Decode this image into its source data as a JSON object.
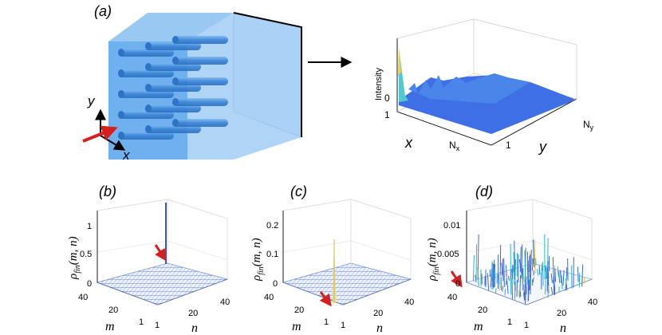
{
  "panels": {
    "a": {
      "label": "(a)",
      "axis_labels": {
        "y": "y",
        "x": "x"
      },
      "surface": {
        "zlabel": "Intensity",
        "ztick": "0",
        "x_label": "x",
        "x_ticks": [
          "1",
          "N"
        ],
        "x_tick_sub": "x",
        "y_label": "y",
        "y_ticks": [
          "1",
          "N"
        ],
        "y_tick_sub": "y"
      }
    },
    "b": {
      "label": "(b)",
      "zlabel_main": "ρ",
      "zlabel_sub": "fin",
      "zlabel_args": "(m, n)",
      "zticks": [
        "0",
        "0.5",
        "1"
      ],
      "m_ticks": [
        "40",
        "20",
        "1"
      ],
      "n_ticks": [
        "1",
        "20",
        "40"
      ],
      "m_label": "m",
      "n_label": "n"
    },
    "c": {
      "label": "(c)",
      "zlabel_main": "ρ",
      "zlabel_sub": "fin",
      "zlabel_args": "(m, n)",
      "zticks": [
        "0",
        "0.1",
        "0.2"
      ],
      "m_ticks": [
        "40",
        "20",
        "1"
      ],
      "n_ticks": [
        "1",
        "20",
        "40"
      ],
      "m_label": "m",
      "n_label": "n"
    },
    "d": {
      "label": "(d)",
      "zlabel_main": "ρ",
      "zlabel_sub": "fin",
      "zlabel_args": "(m, n)",
      "zticks": [
        "0",
        "0.005",
        "0.01"
      ],
      "m_ticks": [
        "40",
        "20",
        "1"
      ],
      "n_ticks": [
        "1",
        "20",
        "40"
      ],
      "m_label": "m",
      "n_label": "n"
    }
  },
  "colors": {
    "blue": "#4a8fe0",
    "red_arrow": "#d62020",
    "grid": "#cccccc"
  }
}
